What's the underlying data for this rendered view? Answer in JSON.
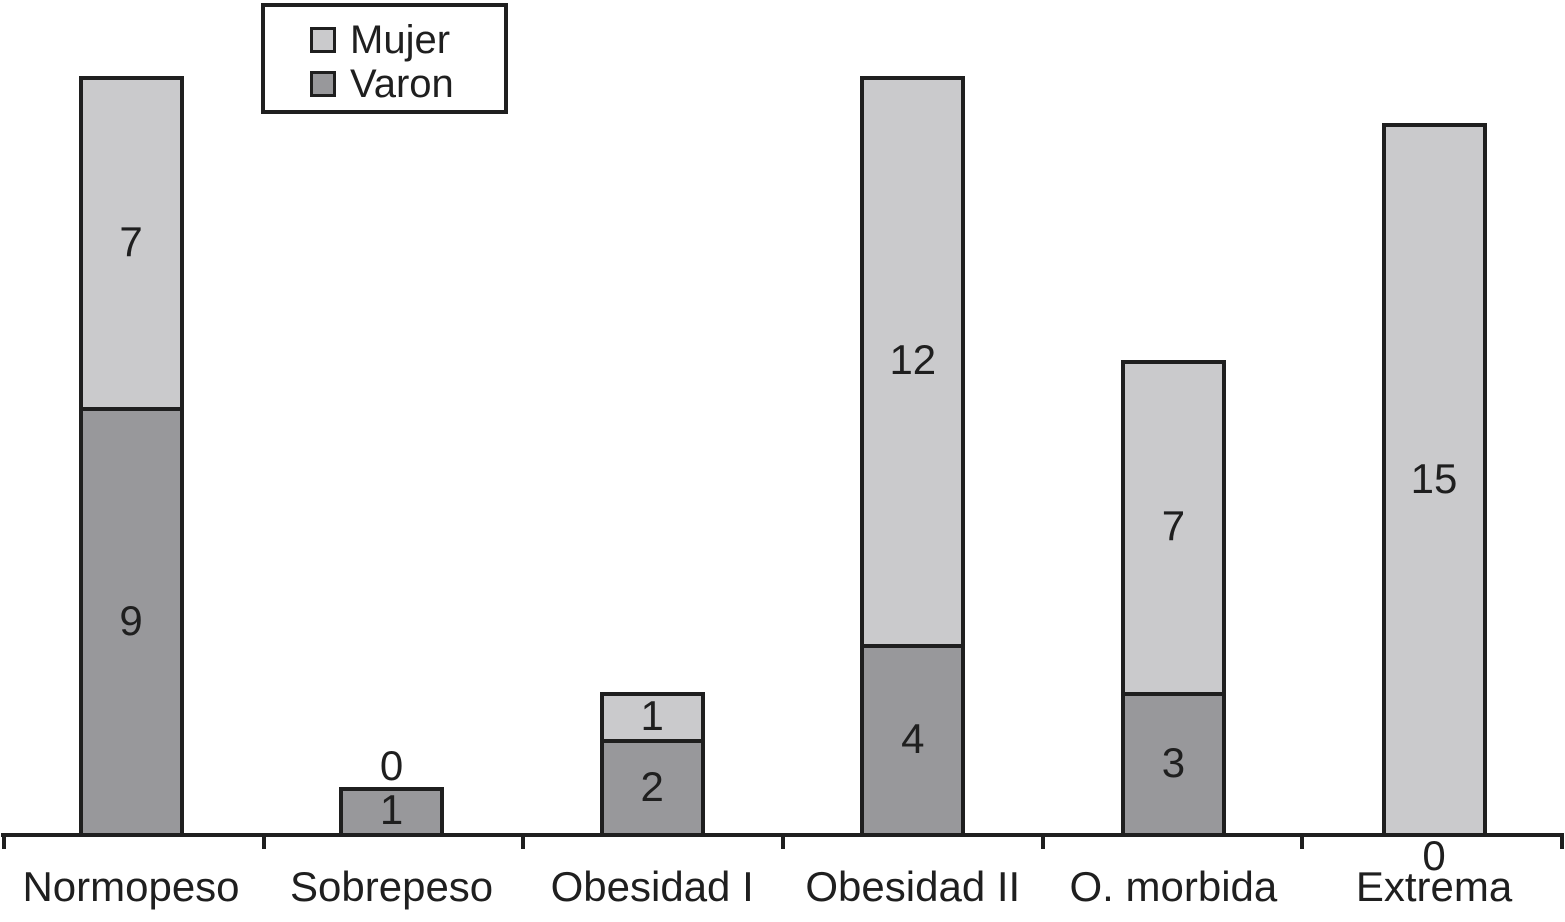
{
  "chart_data": {
    "type": "bar",
    "stacked": true,
    "title": "",
    "xlabel": "",
    "ylabel": "",
    "categories": [
      "Normopeso",
      "Sobrepeso",
      "Obesidad I",
      "Obesidad II",
      "O. morbida",
      "Extrema"
    ],
    "series": [
      {
        "name": "Mujer",
        "color": "#cacacc",
        "values": [
          7,
          0,
          1,
          12,
          7,
          15
        ]
      },
      {
        "name": "Varon",
        "color": "#98989b",
        "values": [
          9,
          1,
          2,
          4,
          3,
          0
        ]
      }
    ],
    "totals": [
      16,
      1,
      3,
      16,
      10,
      15
    ],
    "value_labels_shown": true,
    "zero_labels_shown": true,
    "legend_position": "top-left",
    "grid": false,
    "y_axis_visible": false,
    "ylim": [
      0,
      16
    ],
    "colors": {
      "outline": "#1f1f1f",
      "text": "#1f1f1f",
      "background": "#ffffff"
    }
  }
}
